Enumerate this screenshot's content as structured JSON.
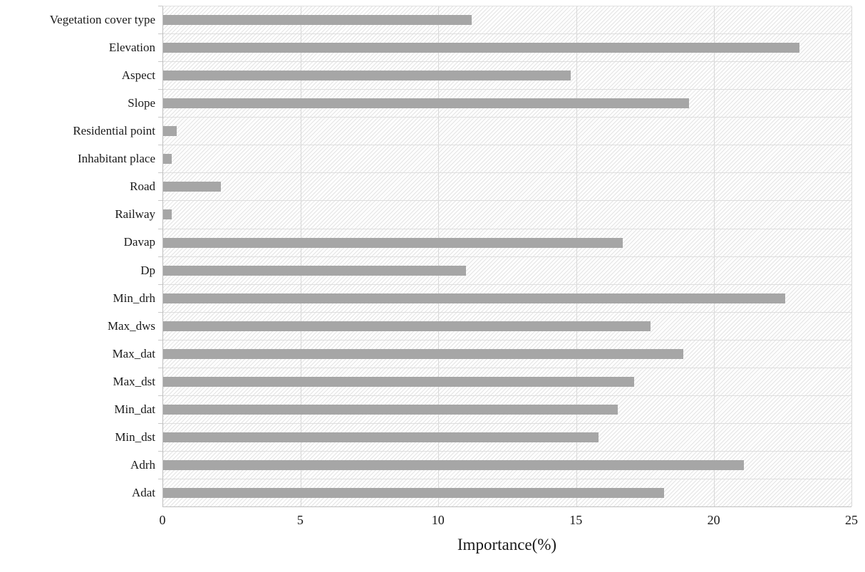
{
  "chart_data": {
    "type": "bar",
    "orientation": "horizontal",
    "categories": [
      "Vegetation cover type",
      "Elevation",
      "Aspect",
      "Slope",
      "Residential point",
      "Inhabitant place",
      "Road",
      "Railway",
      "Davap",
      "Dp",
      "Min_drh",
      "Max_dws",
      "Max_dat",
      "Max_dst",
      "Min_dat",
      "Min_dst",
      "Adrh",
      "Adat"
    ],
    "values": [
      11.2,
      23.1,
      14.8,
      19.1,
      0.5,
      0.3,
      2.1,
      0.3,
      16.7,
      11.0,
      22.6,
      17.7,
      18.9,
      17.1,
      16.5,
      15.8,
      21.1,
      18.2
    ],
    "title": "",
    "xlabel": "Importance(%)",
    "ylabel": "",
    "xlim": [
      0,
      25
    ],
    "x_ticks": [
      0,
      5,
      10,
      15,
      20,
      25
    ],
    "grid": "on",
    "legend": "none",
    "plot_background": "diagonal-hatch",
    "colors": {
      "bar": "#a6a6a6",
      "gridline": "#d9d9d9",
      "hatch_line": "#e9e9e9",
      "axis_line": "#bfbfbf",
      "text": "#1a1a1a"
    }
  }
}
